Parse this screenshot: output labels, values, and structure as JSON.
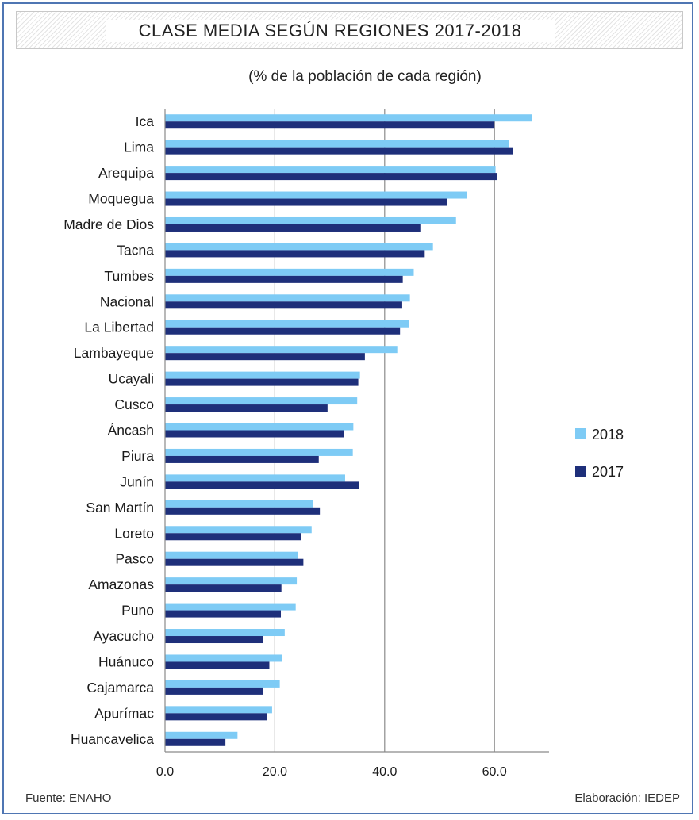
{
  "header": {
    "title": "CLASE MEDIA SEGÚN REGIONES 2017-2018",
    "subtitle": "(% de la población de cada región)"
  },
  "footer": {
    "source": "Fuente: ENAHO",
    "credit": "Elaboración: IEDEP"
  },
  "colors": {
    "series_2018": "#7ecbf5",
    "series_2017": "#1e2f7a",
    "gridline": "#8a8a8a",
    "frame": "#4f76b3"
  },
  "chart_data": {
    "type": "bar",
    "orientation": "horizontal",
    "title": "CLASE MEDIA SEGÚN REGIONES 2017-2018",
    "subtitle": "(% de la población de cada región)",
    "xlim": [
      0,
      70
    ],
    "xticks": [
      0,
      20,
      40,
      60
    ],
    "xtick_labels": [
      "0.0",
      "20.0",
      "40.0",
      "60.0"
    ],
    "grid": "vertical",
    "legend_position": "right",
    "categories": [
      "Ica",
      "Lima",
      "Arequipa",
      "Moquegua",
      "Madre de Dios",
      "Tacna",
      "Tumbes",
      "Nacional",
      "La Libertad",
      "Lambayeque",
      "Ucayali",
      "Cusco",
      "Áncash",
      "Piura",
      "Junín",
      "San Martín",
      "Loreto",
      "Pasco",
      "Amazonas",
      "Puno",
      "Ayacucho",
      "Huánuco",
      "Cajamarca",
      "Apurímac",
      "Huancavelica"
    ],
    "series": [
      {
        "name": "2018",
        "values": [
          66.8,
          62.7,
          60.2,
          55.0,
          53.0,
          48.8,
          45.3,
          44.6,
          44.4,
          42.3,
          35.5,
          35.0,
          34.3,
          34.2,
          32.8,
          27.0,
          26.7,
          24.2,
          24.0,
          23.8,
          21.8,
          21.3,
          20.9,
          19.5,
          13.2
        ]
      },
      {
        "name": "2017",
        "values": [
          60.0,
          63.4,
          60.5,
          51.3,
          46.5,
          47.3,
          43.3,
          43.2,
          42.8,
          36.4,
          35.2,
          29.6,
          32.6,
          28.0,
          35.4,
          28.2,
          24.8,
          25.2,
          21.2,
          21.1,
          17.8,
          19.0,
          17.8,
          18.5,
          11.0
        ]
      }
    ]
  }
}
